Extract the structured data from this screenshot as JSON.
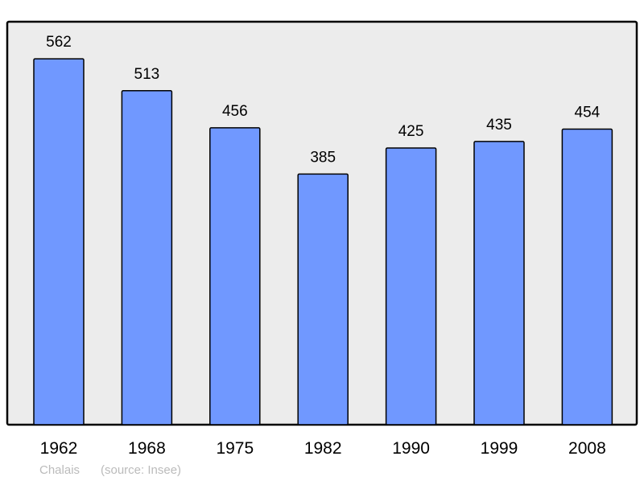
{
  "chart_data": {
    "type": "bar",
    "categories": [
      "1962",
      "1968",
      "1975",
      "1982",
      "1990",
      "1999",
      "2008"
    ],
    "values": [
      562,
      513,
      456,
      385,
      425,
      435,
      454
    ],
    "title": "",
    "xlabel": "",
    "ylabel": "",
    "ylim": [
      0,
      619
    ],
    "grid": false,
    "data_labels": true,
    "colors": {
      "bar": "#7098ff",
      "plot_background": "#ececec",
      "border": "#000000"
    }
  },
  "caption": {
    "place": "Chalais",
    "source": "(source: Insee)"
  }
}
